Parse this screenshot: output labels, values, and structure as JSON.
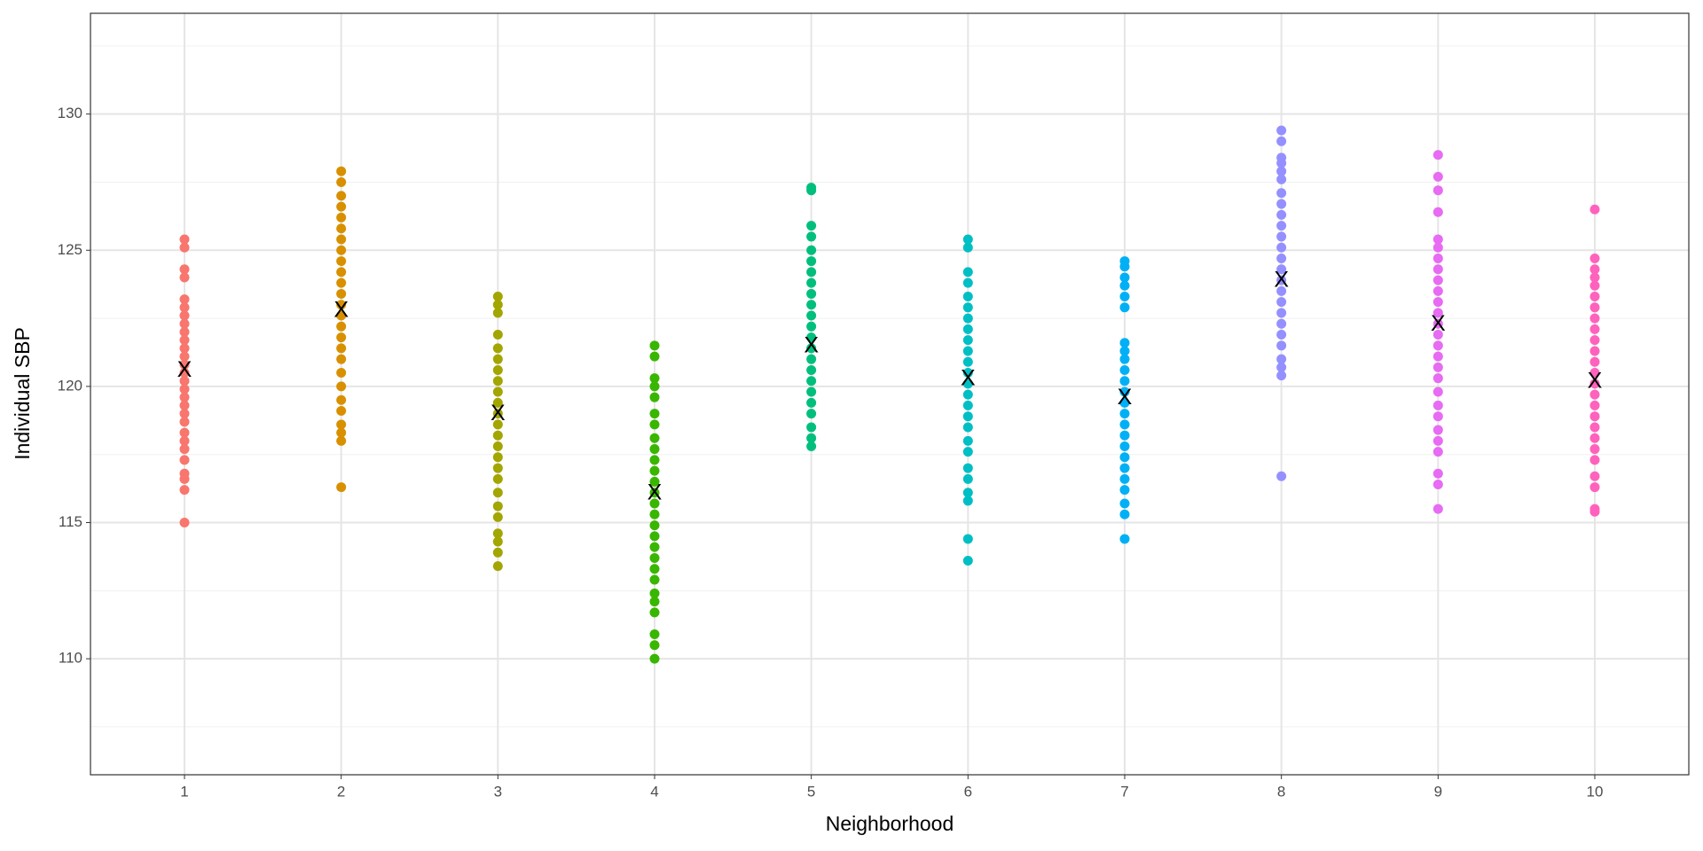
{
  "chart_data": {
    "type": "scatter",
    "x_label": "Neighborhood",
    "y_label": "Individual SBP",
    "xlim": [
      0.4,
      10.6
    ],
    "ylim": [
      105.74,
      133.7
    ],
    "xticks": [
      1,
      2,
      3,
      4,
      5,
      6,
      7,
      8,
      9,
      10
    ],
    "yticks": [
      110,
      115,
      120,
      125,
      130
    ],
    "yminor": [
      107.5,
      112.5,
      117.5,
      122.5,
      127.5,
      132.5
    ],
    "grid": true,
    "mean_label": "X",
    "means": [
      120.6,
      122.8,
      119.0,
      116.1,
      121.5,
      120.3,
      119.6,
      123.9,
      122.3,
      120.2
    ],
    "series": [
      {
        "x": 1,
        "color": "#F8766D",
        "values": [
          115.0,
          116.2,
          116.6,
          116.8,
          117.3,
          117.7,
          118.0,
          118.3,
          118.7,
          119.0,
          119.3,
          119.6,
          119.9,
          120.2,
          120.5,
          120.8,
          121.1,
          121.4,
          121.7,
          122.0,
          122.3,
          122.6,
          122.9,
          123.2,
          124.0,
          124.3,
          125.1,
          125.4
        ]
      },
      {
        "x": 2,
        "color": "#D89000",
        "values": [
          116.3,
          118.0,
          118.3,
          118.6,
          119.1,
          119.5,
          120.0,
          120.5,
          121.0,
          121.4,
          121.8,
          122.2,
          122.6,
          123.0,
          123.4,
          123.8,
          124.2,
          124.6,
          125.0,
          125.4,
          125.8,
          126.2,
          126.6,
          127.0,
          127.5,
          127.9
        ]
      },
      {
        "x": 3,
        "color": "#A3A500",
        "values": [
          113.4,
          113.9,
          114.3,
          114.6,
          115.2,
          115.6,
          116.1,
          116.6,
          117.0,
          117.4,
          117.8,
          118.2,
          118.6,
          119.0,
          119.4,
          119.8,
          120.2,
          120.6,
          121.0,
          121.4,
          121.9,
          122.7,
          123.0,
          123.3
        ]
      },
      {
        "x": 4,
        "color": "#39B600",
        "values": [
          110.0,
          110.5,
          110.9,
          111.7,
          112.1,
          112.4,
          112.9,
          113.3,
          113.7,
          114.1,
          114.5,
          114.9,
          115.3,
          115.7,
          116.1,
          116.5,
          116.9,
          117.3,
          117.7,
          118.1,
          118.6,
          119.0,
          119.6,
          120.0,
          120.3,
          121.1,
          121.5
        ]
      },
      {
        "x": 5,
        "color": "#00BF7D",
        "values": [
          117.8,
          118.1,
          118.5,
          119.0,
          119.4,
          119.8,
          120.2,
          120.6,
          121.0,
          121.4,
          121.8,
          122.2,
          122.6,
          123.0,
          123.4,
          123.8,
          124.2,
          124.6,
          125.0,
          125.5,
          125.9,
          127.2,
          127.3
        ]
      },
      {
        "x": 6,
        "color": "#00BFC4",
        "values": [
          113.6,
          114.4,
          115.8,
          116.1,
          116.6,
          117.0,
          117.6,
          118.0,
          118.5,
          118.9,
          119.3,
          119.7,
          120.1,
          120.5,
          120.9,
          121.3,
          121.7,
          122.1,
          122.5,
          122.9,
          123.3,
          123.8,
          124.2,
          125.1,
          125.4
        ]
      },
      {
        "x": 7,
        "color": "#00B0F6",
        "values": [
          114.4,
          115.3,
          115.7,
          116.2,
          116.6,
          117.0,
          117.4,
          117.8,
          118.2,
          118.6,
          119.0,
          119.4,
          119.8,
          120.2,
          120.6,
          121.0,
          121.3,
          121.6,
          122.9,
          123.3,
          123.7,
          124.0,
          124.4,
          124.6
        ]
      },
      {
        "x": 8,
        "color": "#9590FF",
        "values": [
          116.7,
          120.4,
          120.7,
          121.0,
          121.5,
          121.9,
          122.3,
          122.7,
          123.1,
          123.5,
          123.9,
          124.3,
          124.7,
          125.1,
          125.5,
          125.9,
          126.3,
          126.7,
          127.1,
          127.6,
          127.9,
          128.2,
          128.4,
          129.0,
          129.4
        ]
      },
      {
        "x": 9,
        "color": "#E76BF3",
        "values": [
          115.5,
          116.4,
          116.8,
          117.6,
          118.0,
          118.4,
          118.9,
          119.3,
          119.8,
          120.3,
          120.7,
          121.1,
          121.5,
          121.9,
          122.3,
          122.7,
          123.1,
          123.5,
          123.9,
          124.3,
          124.7,
          125.1,
          125.4,
          126.4,
          127.2,
          127.7,
          128.5
        ]
      },
      {
        "x": 10,
        "color": "#FF62BC",
        "values": [
          115.4,
          115.5,
          116.3,
          116.7,
          117.3,
          117.7,
          118.1,
          118.5,
          118.9,
          119.3,
          119.7,
          120.1,
          120.5,
          120.9,
          121.3,
          121.7,
          122.1,
          122.5,
          122.9,
          123.3,
          123.7,
          124.0,
          124.3,
          124.7,
          126.5
        ]
      }
    ]
  }
}
